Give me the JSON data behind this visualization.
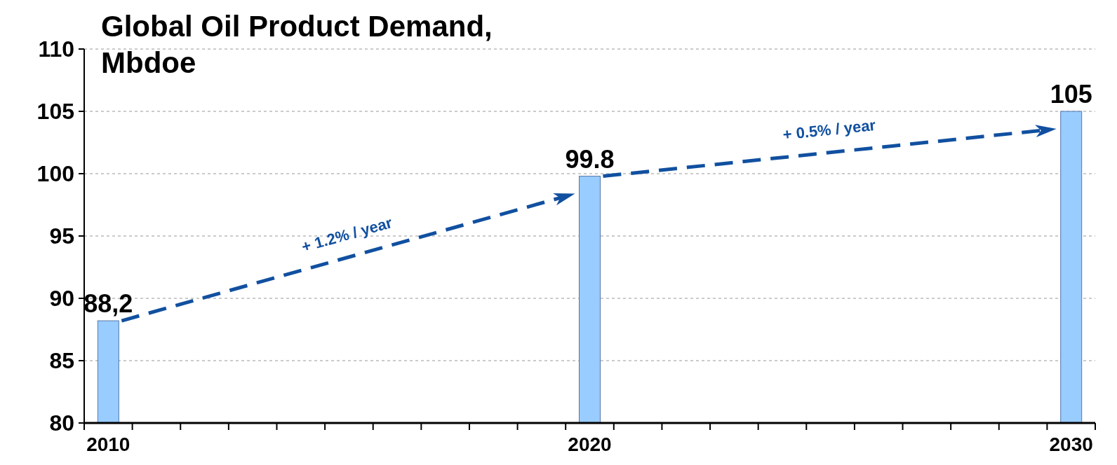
{
  "chart_data": {
    "type": "bar",
    "title": "Global Oil Product Demand, Mbdoe",
    "x": [
      2010,
      2020,
      2030
    ],
    "values": [
      88.2,
      99.8,
      105
    ],
    "value_labels": [
      "88,2",
      "99.8",
      "105"
    ],
    "color": "#99ccff",
    "xlim": [
      2009.5,
      2030.5
    ],
    "xticks": [
      {
        "value": 2009.5,
        "label": null
      },
      {
        "value": 2010,
        "label": "2010"
      },
      {
        "value": 2010.5,
        "label": null
      },
      {
        "value": 2011.5,
        "label": null
      },
      {
        "value": 2012.5,
        "label": null
      },
      {
        "value": 2013.5,
        "label": null
      },
      {
        "value": 2014.5,
        "label": null
      },
      {
        "value": 2015.5,
        "label": null
      },
      {
        "value": 2016.5,
        "label": null
      },
      {
        "value": 2017.5,
        "label": null
      },
      {
        "value": 2018.5,
        "label": null
      },
      {
        "value": 2019.5,
        "label": null
      },
      {
        "value": 2020,
        "label": "2020"
      },
      {
        "value": 2020.5,
        "label": null
      },
      {
        "value": 2021.5,
        "label": null
      },
      {
        "value": 2022.5,
        "label": null
      },
      {
        "value": 2023.5,
        "label": null
      },
      {
        "value": 2024.5,
        "label": null
      },
      {
        "value": 2025.5,
        "label": null
      },
      {
        "value": 2026.5,
        "label": null
      },
      {
        "value": 2027.5,
        "label": null
      },
      {
        "value": 2028.5,
        "label": null
      },
      {
        "value": 2029.5,
        "label": null
      },
      {
        "value": 2030,
        "label": "2030"
      },
      {
        "value": 2030.5,
        "label": null
      }
    ],
    "ylim": [
      80,
      110
    ],
    "yticks": [
      80,
      85,
      90,
      95,
      100,
      105,
      110
    ],
    "grid": "y",
    "annotations": [
      "+ 1.2% / year",
      "+ 0.5% / year"
    ]
  }
}
